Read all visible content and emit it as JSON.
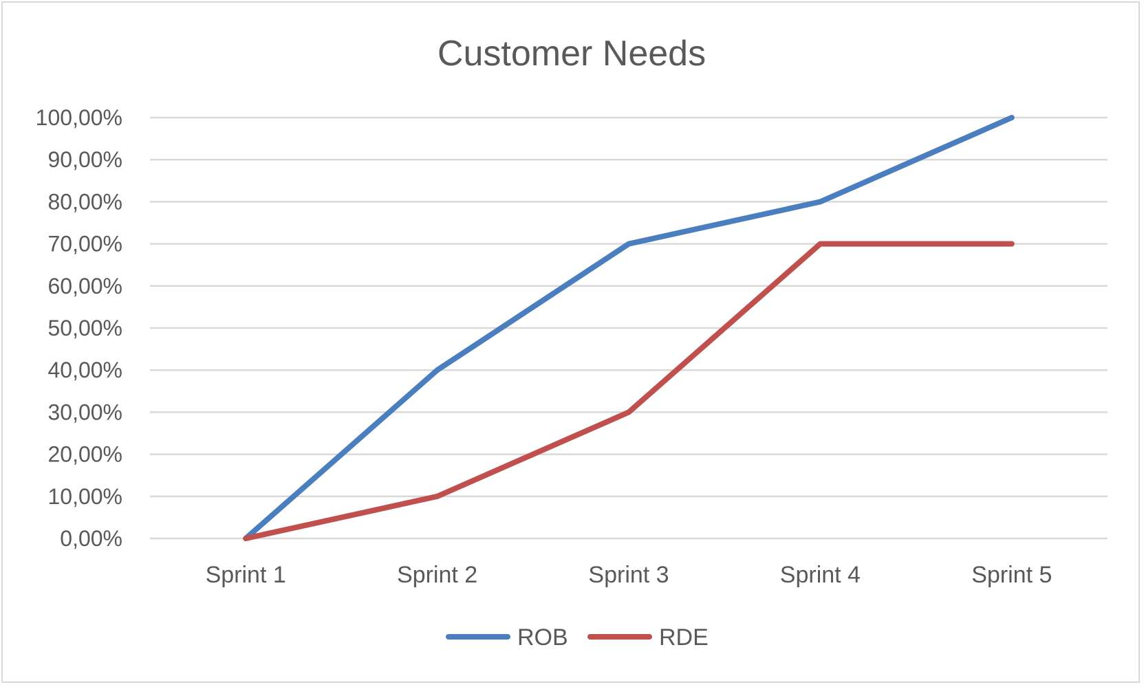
{
  "chart_data": {
    "type": "line",
    "title": "Customer Needs",
    "xlabel": "",
    "ylabel": "",
    "categories": [
      "Sprint 1",
      "Sprint 2",
      "Sprint 3",
      "Sprint 4",
      "Sprint 5"
    ],
    "series": [
      {
        "name": "ROB",
        "values": [
          0,
          40,
          70,
          80,
          100
        ],
        "color": "#4a7ebf"
      },
      {
        "name": "RDE",
        "values": [
          0,
          10,
          30,
          70,
          70
        ],
        "color": "#c0504d"
      }
    ],
    "ylim": [
      0,
      100
    ],
    "yticks": [
      0,
      10,
      20,
      30,
      40,
      50,
      60,
      70,
      80,
      90,
      100
    ],
    "ytick_labels": [
      "0,00%",
      "10,00%",
      "20,00%",
      "30,00%",
      "40,00%",
      "50,00%",
      "60,00%",
      "70,00%",
      "80,00%",
      "90,00%",
      "100,00%"
    ],
    "grid": true,
    "legend_position": "bottom"
  }
}
